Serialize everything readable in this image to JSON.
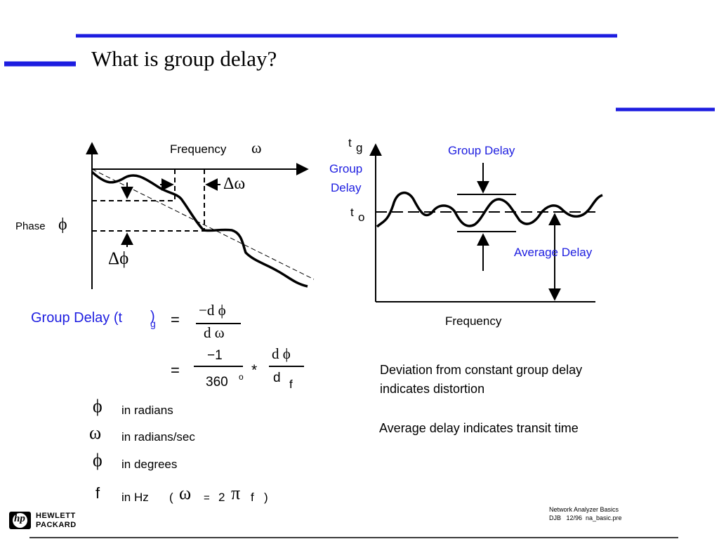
{
  "slide": {
    "title": "What is group delay?",
    "colors": {
      "accent_bar": "#1d1de0",
      "highlight_text": "#1d1de0",
      "ink": "#000000"
    }
  },
  "left_diagram": {
    "x_axis_label": "Frequency",
    "omega_symbol": "ω",
    "y_axis_label": "Phase",
    "phi_symbol": "ϕ",
    "delta_omega": "Δω",
    "delta_phi": "Δϕ"
  },
  "right_diagram": {
    "y_label_t": "t",
    "y_label_sub_g": "g",
    "y_label_group": "Group",
    "y_label_delay": "Delay",
    "t0_t": "t",
    "t0_sub": "o",
    "group_delay_label": "Group Delay",
    "average_delay_label": "Average Delay",
    "x_axis_label": "Frequency"
  },
  "formula": {
    "lhs": "Group Delay (t",
    "lhs_sub": "g",
    "lhs_close": ")",
    "eq1": "=",
    "num1": "−d ϕ",
    "den1": "d ω",
    "eq2": "=",
    "num2": "−1",
    "den2": "360",
    "deg_sup": "o",
    "star": "*",
    "num3": "d ϕ",
    "den3": "d",
    "den3_sub": "f"
  },
  "legend": [
    {
      "symbol": "ϕ",
      "text": "in radians"
    },
    {
      "symbol": "ω",
      "text": "in radians/sec"
    },
    {
      "symbol": "ϕ",
      "text": "in degrees"
    },
    {
      "symbol": "f",
      "text": "in Hz"
    }
  ],
  "hz_relation": {
    "open": "(",
    "omega": "ω",
    "eq": "=",
    "two": "2",
    "pi": "π",
    "f": "f",
    "close": ")"
  },
  "notes": {
    "deviation_line1": "Deviation from constant group delay",
    "deviation_line2": "indicates distortion",
    "average": "Average delay indicates transit time"
  },
  "footer": {
    "logo_line1": "HEWLETT",
    "logo_line2": "PACKARD",
    "logo_mark": "hp",
    "ref_line1": "Network Analyzer Basics",
    "ref_line2": "DJB   12/96  na_basic.pre"
  }
}
